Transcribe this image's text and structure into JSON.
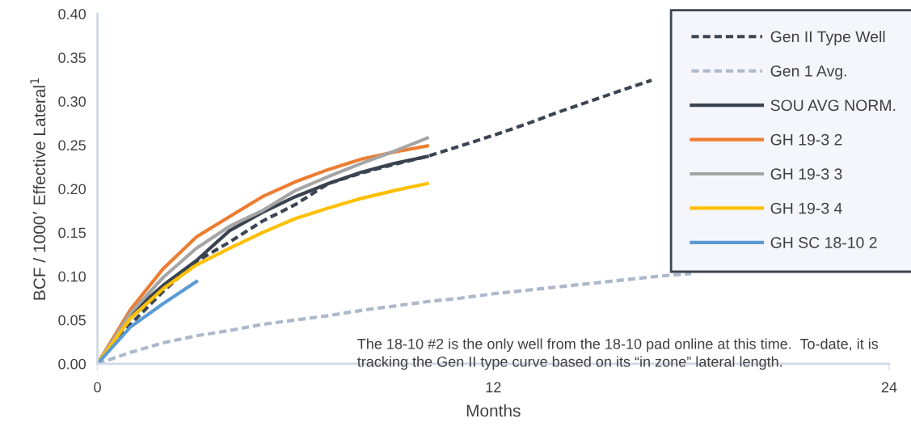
{
  "chart_data": {
    "type": "line",
    "xlabel": "Months",
    "ylabel": "BCF / 1000’ Effective Lateral$^{1}$",
    "xlim": [
      0,
      24
    ],
    "xticks": [
      0,
      12,
      24
    ],
    "ylim": [
      0,
      0.4
    ],
    "yticks": [
      {
        "value": 0,
        "label": "0.00"
      },
      {
        "value": 0.05,
        "label": "0.05"
      },
      {
        "value": 0.1,
        "label": "0.10"
      },
      {
        "value": 0.15,
        "label": "0.15"
      },
      {
        "value": 0.2,
        "label": "0.20"
      },
      {
        "value": 0.25,
        "label": "0.25"
      },
      {
        "value": 0.3,
        "label": "0.30"
      },
      {
        "value": 0.35,
        "label": "0.35"
      },
      {
        "value": 0.4,
        "label": "0.40"
      }
    ],
    "grid": false,
    "legend": "top right",
    "marker": "none",
    "annotations": [
      "The 18-10 #2 is the only well from the 18-10 pad online at this time.  To-date, it is tracking the Gen II type curve based on its “in zone” lateral length."
    ],
    "series": [
      {
        "name": "Gen II Type Well",
        "color": "#3c4552",
        "line_style": "dashed",
        "x": [
          0,
          1,
          2,
          3,
          4,
          5,
          6,
          7,
          8,
          9,
          10,
          11,
          12,
          13,
          14,
          15,
          16,
          16.8
        ],
        "values": [
          0,
          0.045,
          0.083,
          0.117,
          0.139,
          0.163,
          0.182,
          0.206,
          0.218,
          0.228,
          0.237,
          0.249,
          0.261,
          0.274,
          0.288,
          0.301,
          0.314,
          0.324
        ]
      },
      {
        "name": "Gen 1 Avg.",
        "color": "#adb9ca",
        "line_style": "dashed",
        "x": [
          0,
          1,
          2,
          3,
          4,
          5,
          6,
          7,
          8,
          9,
          10,
          11,
          12,
          13,
          14,
          15,
          16,
          17,
          18
        ],
        "values": [
          0,
          0.013,
          0.024,
          0.032,
          0.038,
          0.045,
          0.05,
          0.055,
          0.061,
          0.066,
          0.071,
          0.075,
          0.08,
          0.084,
          0.088,
          0.092,
          0.096,
          0.1,
          0.103
        ]
      },
      {
        "name": "SOU AVG NORM.",
        "color": "#3a4350",
        "line_style": "solid",
        "x": [
          0,
          1,
          2,
          3,
          4,
          5,
          6,
          7,
          8,
          9,
          10
        ],
        "values": [
          0,
          0.057,
          0.09,
          0.118,
          0.152,
          0.173,
          0.191,
          0.206,
          0.219,
          0.229,
          0.237
        ]
      },
      {
        "name": "GH 19-3 2",
        "color": "#ed7d31",
        "line_style": "solid",
        "x": [
          0,
          1,
          2,
          3,
          4,
          5,
          6,
          7,
          8,
          9,
          10
        ],
        "values": [
          0,
          0.062,
          0.109,
          0.145,
          0.168,
          0.191,
          0.208,
          0.222,
          0.234,
          0.242,
          0.249
        ]
      },
      {
        "name": "GH 19-3 3",
        "color": "#a5a5a5",
        "line_style": "solid",
        "x": [
          0,
          1,
          2,
          3,
          4,
          5,
          6,
          7,
          8,
          9,
          10
        ],
        "values": [
          0,
          0.058,
          0.099,
          0.132,
          0.157,
          0.175,
          0.198,
          0.214,
          0.229,
          0.243,
          0.258
        ]
      },
      {
        "name": "GH 19-3 4",
        "color": "#ffc000",
        "line_style": "solid",
        "x": [
          0,
          1,
          2,
          3,
          4,
          5,
          6,
          7,
          8,
          9,
          10
        ],
        "values": [
          0,
          0.052,
          0.086,
          0.113,
          0.132,
          0.15,
          0.166,
          0.178,
          0.189,
          0.198,
          0.206
        ]
      },
      {
        "name": "GH SC 18-10 2",
        "color": "#5b9bd5",
        "line_style": "solid",
        "x": [
          0,
          1,
          2,
          3
        ],
        "values": [
          0,
          0.042,
          0.069,
          0.094
        ]
      }
    ]
  }
}
